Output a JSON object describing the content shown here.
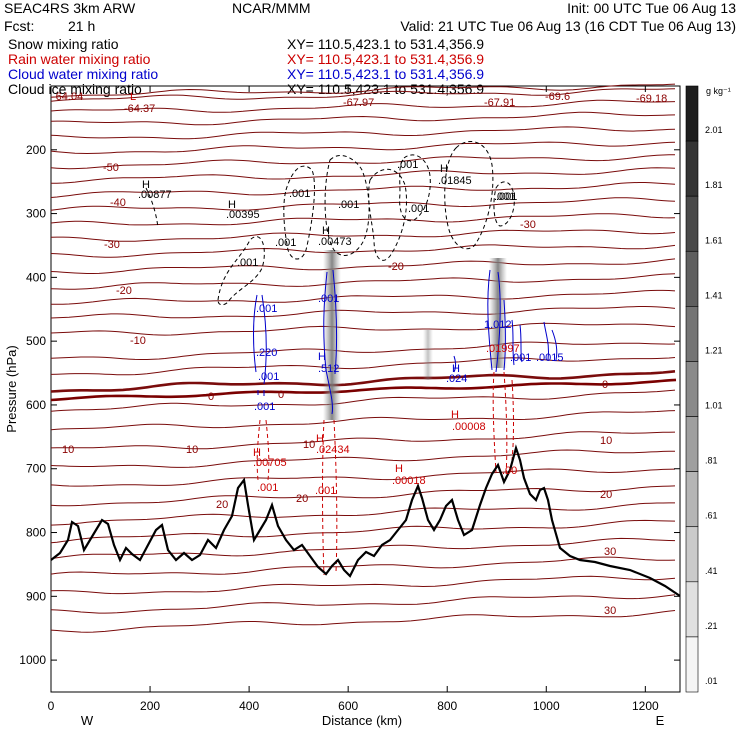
{
  "header": {
    "project": "SEAC4RS  3km ARW",
    "org": "NCAR/MMM",
    "init": "Init: 00 UTC Tue 06 Aug 13",
    "fcst_label": "Fcst:",
    "fcst_value": "21 h",
    "valid": "Valid: 21 UTC Tue 06 Aug 13 (16 CDT Tue 06 Aug 13)"
  },
  "fields": [
    {
      "name": "Snow mixing ratio",
      "xy": "XY=  110.5,423.1  to  531.4,356.9",
      "color": "#000000"
    },
    {
      "name": "Rain water mixing ratio",
      "xy": "XY=  110.5,423.1  to  531.4,356.9",
      "color": "#cc0000"
    },
    {
      "name": "Cloud water mixing ratio",
      "xy": "XY=  110.5,423.1  to  531.4,356.9",
      "color": "#0000cc"
    },
    {
      "name": "Cloud ice mixing ratio",
      "xy": "XY=  110.5,423.1  to  531.4,356.9",
      "color": "#000000"
    }
  ],
  "chart_data": {
    "type": "cross-section",
    "xlabel": "Distance (km)",
    "ylabel": "Pressure (hPa)",
    "xlim": [
      0,
      1270
    ],
    "ylim": [
      100,
      1050
    ],
    "x_ticks": [
      "0",
      "200",
      "400",
      "600",
      "800",
      "1000",
      "1200"
    ],
    "y_ticks": [
      "200",
      "300",
      "400",
      "500",
      "600",
      "700",
      "800",
      "900",
      "1000"
    ],
    "direction_left": "W",
    "direction_right": "E",
    "colorbar": {
      "unit": "g kg⁻¹",
      "labels": [
        "2.01",
        "1.81",
        "1.61",
        "1.41",
        "1.21",
        "1.01",
        ".81",
        ".61",
        ".41",
        ".21",
        ".01"
      ]
    },
    "temperature_labels": [
      "-64.04",
      "-64.37",
      "-67.97",
      "-67.91",
      "-69.6",
      "-69.18",
      "-50",
      "-40",
      "-30",
      "-30",
      "-20",
      "-20",
      "-10",
      "0",
      "0",
      "0",
      "10",
      "10",
      "10",
      "10",
      "20",
      "20",
      "20",
      "30",
      "30"
    ],
    "mixing_labels": [
      {
        "text": "H",
        "color": "black"
      },
      {
        "text": ".00877",
        "color": "black"
      },
      {
        "text": "H",
        "color": "black"
      },
      {
        "text": ".00395",
        "color": "black"
      },
      {
        "text": ".001",
        "color": "black"
      },
      {
        "text": ".001",
        "color": "black"
      },
      {
        "text": ".001",
        "color": "black"
      },
      {
        "text": ".001",
        "color": "black"
      },
      {
        "text": "H",
        "color": "black"
      },
      {
        "text": ".00473",
        "color": "black"
      },
      {
        "text": ".001",
        "color": "black"
      },
      {
        "text": ".001",
        "color": "black"
      },
      {
        "text": ".001",
        "color": "black"
      },
      {
        "text": "H",
        "color": "black"
      },
      {
        "text": ".01845",
        "color": "black"
      },
      {
        "text": ".001",
        "color": "black"
      },
      {
        "text": "L",
        "color": "red"
      },
      {
        "text": ".001",
        "color": "blue"
      },
      {
        "text": ".220",
        "color": "blue"
      },
      {
        "text": ".001",
        "color": "blue"
      },
      {
        "text": ".001",
        "color": "blue"
      },
      {
        "text": "H",
        "color": "blue"
      },
      {
        "text": ".512",
        "color": "blue"
      },
      {
        "text": ".001",
        "color": "blue"
      },
      {
        "text": "1.012",
        "color": "blue"
      },
      {
        "text": "H",
        "color": "blue"
      },
      {
        "text": ".024",
        "color": "blue"
      },
      {
        "text": ".001",
        "color": "blue"
      },
      {
        "text": ".0015",
        "color": "blue"
      },
      {
        "text": "H",
        "color": "red"
      },
      {
        "text": ".00705",
        "color": "red"
      },
      {
        "text": ".001",
        "color": "red"
      },
      {
        "text": "H",
        "color": "red"
      },
      {
        "text": ".02434",
        "color": "red"
      },
      {
        "text": ".001",
        "color": "red"
      },
      {
        "text": "H",
        "color": "red"
      },
      {
        "text": ".00018",
        "color": "red"
      },
      {
        "text": "H",
        "color": "red"
      },
      {
        "text": ".00008",
        "color": "red"
      },
      {
        "text": ".00",
        "color": "red"
      },
      {
        "text": ".01997",
        "color": "red"
      }
    ]
  }
}
